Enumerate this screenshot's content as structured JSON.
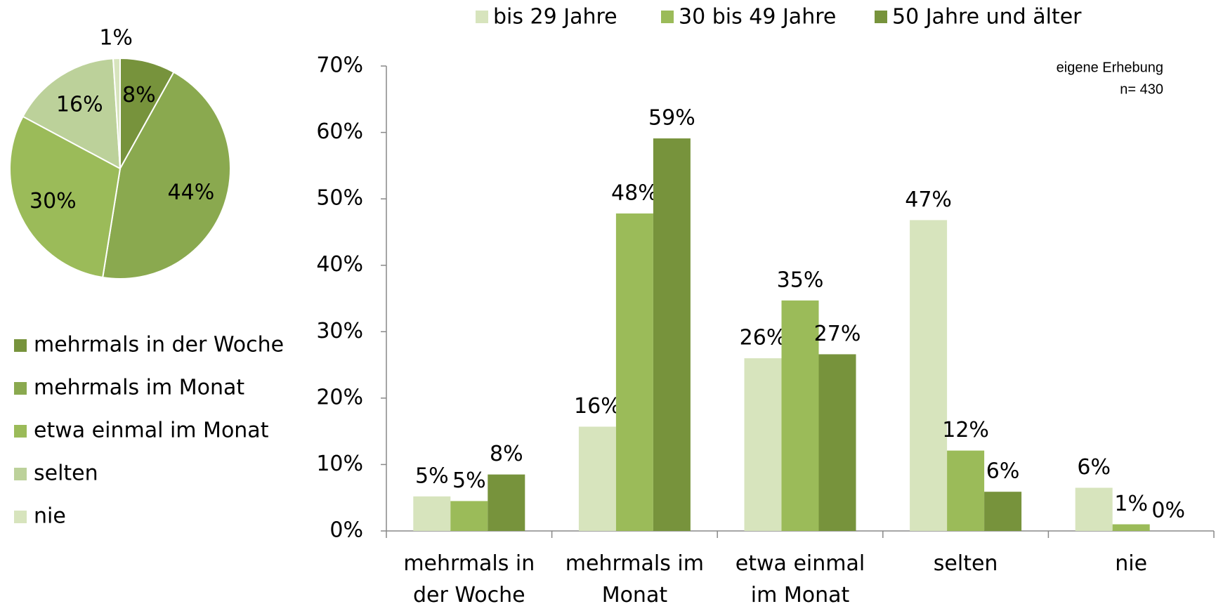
{
  "chart_data": [
    {
      "type": "pie",
      "categories": [
        "mehrmals in der Woche",
        "mehrmals im Monat",
        "etwa einmal im Monat",
        "selten",
        "nie"
      ],
      "values": [
        8,
        44,
        30,
        16,
        1
      ],
      "value_labels": [
        "8%",
        "44%",
        "30%",
        "16%",
        "1%"
      ],
      "colors": [
        "#77933c",
        "#8aa94f",
        "#9bbb59",
        "#bcd19a",
        "#d7e4bd"
      ]
    },
    {
      "type": "bar",
      "annotations": [
        "eigene Erhebung",
        "n= 430"
      ],
      "categories": [
        "mehrmals in der Woche",
        "mehrmals im Monat",
        "etwa einmal im Monat",
        "selten",
        "nie"
      ],
      "series": [
        {
          "name": "bis 29 Jahre",
          "color": "#d7e4bd",
          "values": [
            5.2,
            15.7,
            26,
            46.8,
            6.5
          ],
          "value_labels": [
            "5%",
            "16%",
            "26%",
            "47%",
            "6%"
          ]
        },
        {
          "name": "30 bis 49 Jahre",
          "color": "#9bbb59",
          "values": [
            4.5,
            47.8,
            34.7,
            12.1,
            1.0
          ],
          "value_labels": [
            "5%",
            "48%",
            "35%",
            "12%",
            "1%"
          ]
        },
        {
          "name": "50 Jahre und älter",
          "color": "#77933c",
          "values": [
            8.5,
            59.1,
            26.6,
            5.9,
            0
          ],
          "value_labels": [
            "8%",
            "59%",
            "27%",
            "6%",
            "0%"
          ]
        }
      ],
      "ylim": [
        0,
        70
      ],
      "yticks": [
        {
          "value": 0,
          "label": "0%"
        },
        {
          "value": 10,
          "label": "10%"
        },
        {
          "value": 20,
          "label": "20%"
        },
        {
          "value": 30,
          "label": "30%"
        },
        {
          "value": 40,
          "label": "40%"
        },
        {
          "value": 50,
          "label": "50%"
        },
        {
          "value": 60,
          "label": "60%"
        },
        {
          "value": 70,
          "label": "70%"
        }
      ],
      "legend": "top"
    }
  ]
}
